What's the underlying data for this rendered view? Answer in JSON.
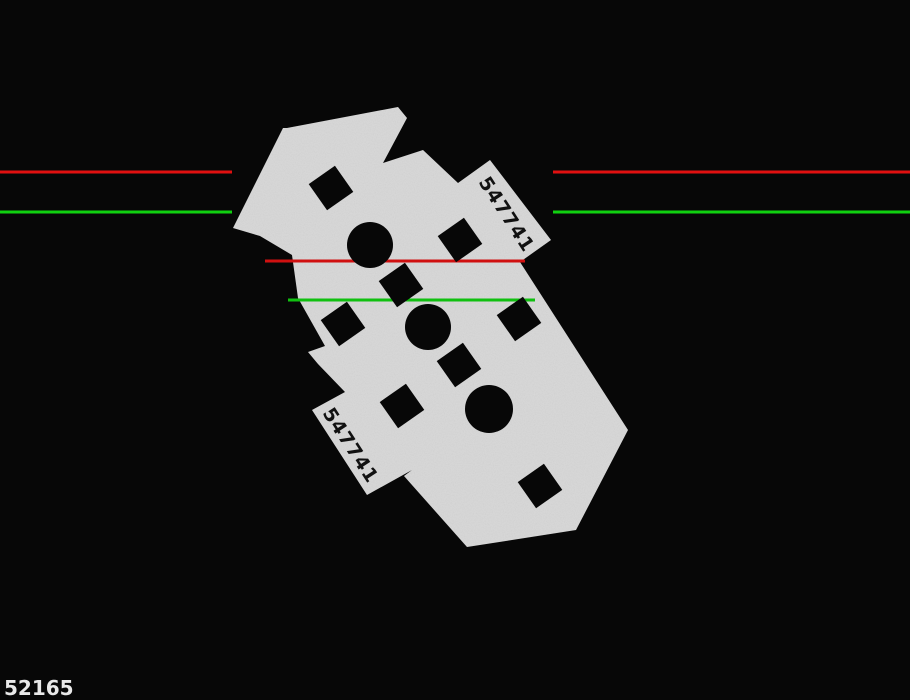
{
  "scene": {
    "background_color": "#070707",
    "part_color": "#d9d9d9",
    "cutout_color": "#070707",
    "reference_lines": {
      "upper_color": "#e01010",
      "lower_color": "#10d010"
    }
  },
  "part": {
    "upper_label": "547741",
    "lower_label": "547741"
  },
  "frame_counter": "52165"
}
